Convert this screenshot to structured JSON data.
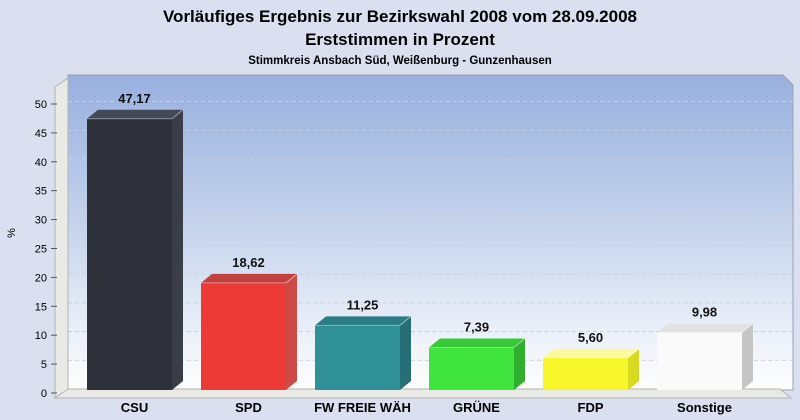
{
  "page": {
    "title": "Vorläufiges Ergebnis zur Bezirkswahl 2008 vom 28.09.2008",
    "subtitle": "Erststimmen in Prozent",
    "region_line": "Stimmkreis Ansbach Süd, Weißenburg - Gunzenhausen",
    "background": "#dbe0f1"
  },
  "chart_data": {
    "type": "bar",
    "style": "3d-column",
    "title": "Vorläufiges Ergebnis zur Bezirkswahl 2008 vom 28.09.2008 — Erststimmen in Prozent",
    "categories": [
      "CSU",
      "SPD",
      "FW FREIE WÄH",
      "GRÜNE",
      "FDP",
      "Sonstige"
    ],
    "values": [
      47.17,
      18.62,
      11.25,
      7.39,
      5.6,
      9.98
    ],
    "value_labels": [
      "47,17",
      "18,62",
      "11,25",
      "7,39",
      "5,60",
      "9,98"
    ],
    "bar_colors": [
      {
        "name": "CSU",
        "front": "#2e3139",
        "top": "#434956",
        "side": "#3a3e48"
      },
      {
        "name": "SPD",
        "front": "#ee3a36",
        "top": "#c2413e",
        "side": "#cd4a46"
      },
      {
        "name": "FW FREIE WÄH",
        "front": "#2f9098",
        "top": "#2a7d84",
        "side": "#256e75"
      },
      {
        "name": "GRÜNE",
        "front": "#3fe43f",
        "top": "#38c838",
        "side": "#2fae2f"
      },
      {
        "name": "FDP",
        "front": "#f6f62b",
        "top": "#fafa9c",
        "side": "#d9d922"
      },
      {
        "name": "Sonstige",
        "front": "#fafafa",
        "top": "#e3e3e3",
        "side": "#c5c5c5"
      }
    ],
    "xlabel": "",
    "ylabel": "%",
    "ylim": [
      0,
      50
    ],
    "yticks": [
      0,
      5,
      10,
      15,
      20,
      25,
      30,
      35,
      40,
      45,
      50
    ],
    "grid": "dashed horizontal",
    "legend": "none",
    "plot_bg_gradient": [
      "#98b0de",
      "#c5d3ec",
      "#eef3fa",
      "#fefefe"
    ],
    "wall_color": "#e9e9e6",
    "gridline_color": "#c9cfdc",
    "label_color": "#111111"
  }
}
